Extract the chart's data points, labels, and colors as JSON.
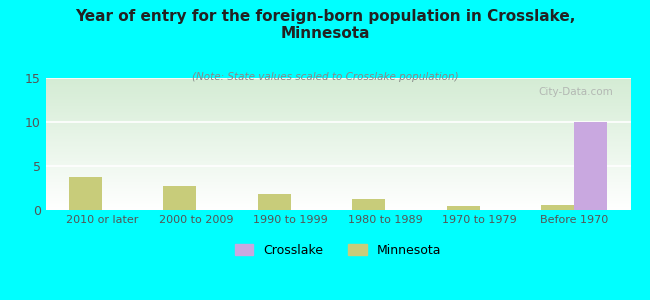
{
  "title": "Year of entry for the foreign-born population in Crosslake,\nMinnesota",
  "subtitle": "(Note: State values scaled to Crosslake population)",
  "categories": [
    "2010 or later",
    "2000 to 2009",
    "1990 to 1999",
    "1980 to 1989",
    "1970 to 1979",
    "Before 1970"
  ],
  "crosslake_values": [
    0,
    0,
    0,
    0,
    0,
    10
  ],
  "minnesota_values": [
    3.7,
    2.7,
    1.8,
    1.2,
    0.5,
    0.6
  ],
  "crosslake_color": "#c9a8e0",
  "minnesota_color": "#c8cc7a",
  "background_color": "#00ffff",
  "ylim": [
    0,
    15
  ],
  "yticks": [
    0,
    5,
    10,
    15
  ],
  "bar_width": 0.35,
  "watermark": "City-Data.com",
  "legend_labels": [
    "Crosslake",
    "Minnesota"
  ],
  "xlim": [
    -0.6,
    5.6
  ]
}
